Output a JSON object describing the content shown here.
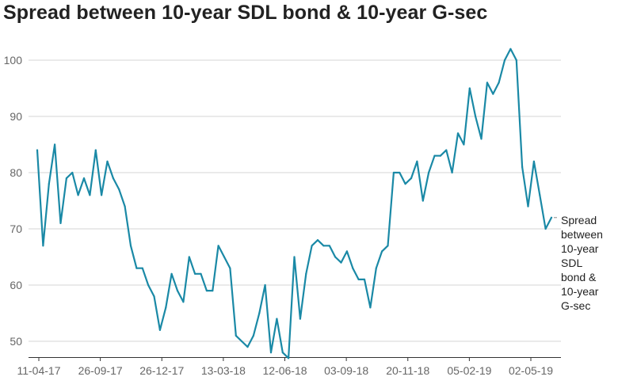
{
  "chart_data": {
    "type": "line",
    "title": "Spread between 10-year SDL bond & 10-year G-sec",
    "xlabel": "",
    "ylabel": "",
    "ylim": [
      46,
      103
    ],
    "yticks": [
      50,
      60,
      70,
      80,
      90,
      100
    ],
    "xtick_labels": [
      "11-04-17",
      "26-09-17",
      "26-12-17",
      "13-03-18",
      "12-06-18",
      "03-09-18",
      "20-11-18",
      "05-02-19",
      "02-05-19"
    ],
    "grid": "horizontal",
    "series": [
      {
        "name": "Spread between 10-year SDL bond & 10-year G-sec",
        "label_lines": [
          "Spread",
          "between",
          "10-year",
          "SDL",
          "bond &",
          "10-year",
          "G-sec"
        ],
        "color": "#1a89a6",
        "values": [
          84,
          67,
          78,
          85,
          71,
          79,
          80,
          76,
          79,
          76,
          84,
          76,
          82,
          79,
          77,
          74,
          67,
          63,
          63,
          60,
          58,
          52,
          56,
          62,
          59,
          57,
          65,
          62,
          62,
          59,
          59,
          67,
          65,
          63,
          51,
          50,
          49,
          51,
          55,
          60,
          48,
          54,
          48,
          47,
          65,
          54,
          62,
          67,
          68,
          67,
          67,
          65,
          64,
          66,
          63,
          61,
          61,
          56,
          63,
          66,
          67,
          80,
          80,
          78,
          79,
          82,
          75,
          80,
          83,
          83,
          84,
          80,
          87,
          85,
          95,
          90,
          86,
          96,
          94,
          96,
          100,
          102,
          100,
          81,
          74,
          82,
          76,
          70,
          72
        ]
      }
    ]
  }
}
